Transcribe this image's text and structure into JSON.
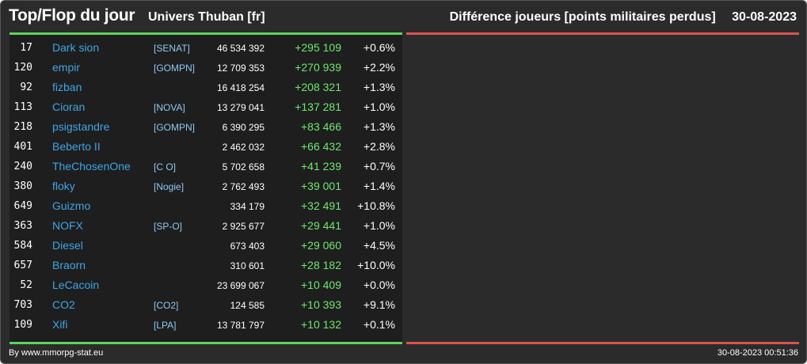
{
  "header": {
    "title": "Top/Flop du jour",
    "subtitle": "Univers Thuban [fr]",
    "ranking_label": "Différence joueurs [points militaires perdus]",
    "date": "30-08-2023"
  },
  "top_rows": [
    {
      "rank": "17",
      "name": "Dark sion",
      "alliance": "[SENAT]",
      "points": "46 534 392",
      "diff": "+295 109",
      "pct": "+0.6%"
    },
    {
      "rank": "120",
      "name": "empir",
      "alliance": "[GOMPN]",
      "points": "12 709 353",
      "diff": "+270 939",
      "pct": "+2.2%"
    },
    {
      "rank": "92",
      "name": "fizban",
      "alliance": "",
      "points": "16 418 254",
      "diff": "+208 321",
      "pct": "+1.3%"
    },
    {
      "rank": "113",
      "name": "Cioran",
      "alliance": "[NOVA]",
      "points": "13 279 041",
      "diff": "+137 281",
      "pct": "+1.0%"
    },
    {
      "rank": "218",
      "name": "psigstandre",
      "alliance": "[GOMPN]",
      "points": "6 390 295",
      "diff": "+83 466",
      "pct": "+1.3%"
    },
    {
      "rank": "401",
      "name": "Beberto II",
      "alliance": "",
      "points": "2 462 032",
      "diff": "+66 432",
      "pct": "+2.8%"
    },
    {
      "rank": "240",
      "name": "TheChosenOne",
      "alliance": "[C O]",
      "points": "5 702 658",
      "diff": "+41 239",
      "pct": "+0.7%"
    },
    {
      "rank": "380",
      "name": "floky",
      "alliance": "[Nogie]",
      "points": "2 762 493",
      "diff": "+39 001",
      "pct": "+1.4%"
    },
    {
      "rank": "649",
      "name": "Guizmo",
      "alliance": "",
      "points": "334 179",
      "diff": "+32 491",
      "pct": "+10.8%"
    },
    {
      "rank": "363",
      "name": "NOFX",
      "alliance": "[SP-O]",
      "points": "2 925 677",
      "diff": "+29 441",
      "pct": "+1.0%"
    },
    {
      "rank": "584",
      "name": "Diesel",
      "alliance": "",
      "points": "673 403",
      "diff": "+29 060",
      "pct": "+4.5%"
    },
    {
      "rank": "657",
      "name": "Braorn",
      "alliance": "",
      "points": "310 601",
      "diff": "+28 182",
      "pct": "+10.0%"
    },
    {
      "rank": "52",
      "name": "LeCacoin",
      "alliance": "",
      "points": "23 699 067",
      "diff": "+10 409",
      "pct": "+0.0%"
    },
    {
      "rank": "703",
      "name": "CO2",
      "alliance": "[CO2]",
      "points": "124 585",
      "diff": "+10 393",
      "pct": "+9.1%"
    },
    {
      "rank": "109",
      "name": "Xifi",
      "alliance": "[LPA]",
      "points": "13 781 797",
      "diff": "+10 132",
      "pct": "+0.1%"
    }
  ],
  "footer": {
    "credit": "By www.mmorpg-stat.eu",
    "timestamp": "30-08-2023 00:51:36"
  },
  "colors": {
    "background": "#2b2b2b",
    "panel": "#1e1e1e",
    "top_accent": "#5fd35f",
    "flop_accent": "#d9534f",
    "player_name": "#3ea6e6",
    "alliance": "#8fc9f2",
    "positive_diff": "#6ee86e"
  }
}
